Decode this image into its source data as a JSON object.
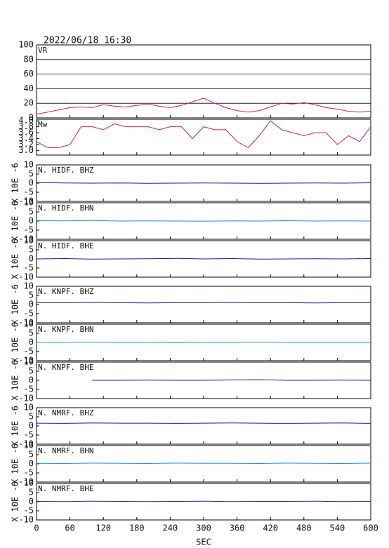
{
  "chart_data": [
    {
      "type": "line",
      "title": "2022/06/18 16:30",
      "annotation": "VR",
      "x": [
        0,
        20,
        40,
        60,
        80,
        100,
        120,
        140,
        160,
        180,
        200,
        220,
        240,
        260,
        280,
        300,
        320,
        340,
        360,
        380,
        400,
        420,
        440,
        460,
        480,
        500,
        520,
        540,
        560,
        580,
        600
      ],
      "series": [
        {
          "color": "#d0204a",
          "values": [
            5,
            8,
            11,
            14,
            15,
            14,
            18,
            16,
            15,
            17,
            19,
            16,
            14,
            17,
            22,
            27,
            20,
            14,
            10,
            8,
            10,
            15,
            20,
            19,
            21,
            18,
            14,
            12,
            9,
            8,
            9
          ]
        }
      ],
      "xlim": [
        0,
        600
      ],
      "xticks": [
        0,
        60,
        120,
        180,
        240,
        300,
        360,
        420,
        480,
        540,
        600
      ],
      "ylim": [
        0,
        100
      ],
      "yticks": [
        0,
        20,
        40,
        60,
        80,
        100
      ],
      "grid": true
    },
    {
      "type": "line",
      "annotation": "Mw",
      "x": [
        0,
        20,
        40,
        60,
        80,
        100,
        120,
        140,
        160,
        180,
        200,
        220,
        240,
        260,
        280,
        300,
        320,
        340,
        360,
        380,
        400,
        420,
        440,
        460,
        480,
        500,
        520,
        540,
        560,
        580,
        600
      ],
      "series": [
        {
          "color": "#d0204a",
          "values": [
            3.3,
            3.1,
            3.1,
            3.2,
            3.8,
            3.8,
            3.7,
            3.9,
            3.8,
            3.8,
            3.8,
            3.7,
            3.8,
            3.8,
            3.4,
            3.8,
            3.7,
            3.7,
            3.3,
            3.1,
            3.5,
            4.0,
            3.7,
            3.6,
            3.5,
            3.6,
            3.6,
            3.2,
            3.5,
            3.3,
            3.8
          ]
        }
      ],
      "xlim": [
        0,
        600
      ],
      "xticks": [
        0,
        60,
        120,
        180,
        240,
        300,
        360,
        420,
        480,
        540,
        600
      ],
      "ylim": [
        2.85,
        4.05
      ],
      "yticks": [
        {
          "value": 3,
          "label": "3.0"
        },
        3.2,
        3.4,
        3.6,
        3.8,
        {
          "value": 4,
          "label": "4.0"
        }
      ],
      "grid": false
    },
    {
      "type": "line",
      "annotation": "N. HIDF. BHZ",
      "ylabel": "X 10E -6",
      "x": [
        0,
        50,
        100,
        150,
        200,
        250,
        300,
        350,
        400,
        450,
        500,
        550,
        600
      ],
      "series": [
        {
          "color": "#1a1a9a",
          "values": [
            0.3,
            0.1,
            0,
            0.1,
            -0.1,
            0,
            0.1,
            0,
            -0.1,
            0,
            0.1,
            0,
            0.2
          ]
        }
      ],
      "xlim": [
        0,
        600
      ],
      "xticks": [
        0,
        60,
        120,
        180,
        240,
        300,
        360,
        420,
        480,
        540,
        600
      ],
      "ylim": [
        -10,
        10
      ],
      "yticks": [
        -10,
        -5,
        0,
        5,
        10
      ],
      "grid": false
    },
    {
      "type": "line",
      "annotation": "N. HIDF. BHN",
      "ylabel": "X 10E -6",
      "x": [
        0,
        50,
        100,
        150,
        200,
        250,
        300,
        350,
        400,
        450,
        500,
        550,
        600
      ],
      "series": [
        {
          "color": "#1e90d8",
          "values": [
            0.2,
            0.1,
            0.3,
            0,
            0.1,
            0,
            -0.1,
            0.1,
            0,
            0.2,
            0,
            0.1,
            0
          ]
        }
      ],
      "xlim": [
        0,
        600
      ],
      "xticks": [
        0,
        60,
        120,
        180,
        240,
        300,
        360,
        420,
        480,
        540,
        600
      ],
      "ylim": [
        -10,
        10
      ],
      "yticks": [
        -10,
        -5,
        0,
        5,
        10
      ],
      "grid": false
    },
    {
      "type": "line",
      "annotation": "N. HIDF. BHE",
      "ylabel": "X 10E -6",
      "x": [
        0,
        50,
        100,
        150,
        200,
        250,
        300,
        350,
        400,
        450,
        500,
        550,
        600
      ],
      "series": [
        {
          "color": "#1a1a9a",
          "values": [
            0,
            0.2,
            -0.1,
            0,
            0.1,
            0.3,
            0,
            0.2,
            -0.1,
            0,
            0.1,
            0,
            0.2
          ]
        }
      ],
      "xlim": [
        0,
        600
      ],
      "xticks": [
        0,
        60,
        120,
        180,
        240,
        300,
        360,
        420,
        480,
        540,
        600
      ],
      "ylim": [
        -10,
        10
      ],
      "yticks": [
        -10,
        -5,
        0,
        5,
        10
      ],
      "grid": false
    },
    {
      "type": "line",
      "annotation": "N. KNPF. BHZ",
      "ylabel": "X 10E -6",
      "x": [
        0,
        50,
        100,
        150,
        200,
        250,
        300,
        350,
        400,
        450,
        500,
        550,
        600
      ],
      "series": [
        {
          "color": "#1a1a9a",
          "values": [
            1,
            1,
            1.1,
            1,
            0.9,
            1,
            1,
            1.1,
            1,
            1,
            0.9,
            1,
            1
          ]
        }
      ],
      "xlim": [
        0,
        600
      ],
      "xticks": [
        0,
        60,
        120,
        180,
        240,
        300,
        360,
        420,
        480,
        540,
        600
      ],
      "ylim": [
        -10,
        10
      ],
      "yticks": [
        -10,
        -5,
        0,
        5,
        10
      ],
      "grid": false
    },
    {
      "type": "line",
      "annotation": "N. KNPF. BHN",
      "ylabel": "X 10E -6",
      "x": [
        0,
        50,
        100,
        150,
        200,
        250,
        300,
        350,
        400,
        450,
        500,
        550,
        600
      ],
      "series": [
        {
          "color": "#1e90d8",
          "values": [
            0,
            0,
            0.1,
            0,
            0,
            -0.1,
            0,
            0,
            0.1,
            0,
            0,
            0,
            0
          ]
        }
      ],
      "xlim": [
        0,
        600
      ],
      "xticks": [
        0,
        60,
        120,
        180,
        240,
        300,
        360,
        420,
        480,
        540,
        600
      ],
      "ylim": [
        -10,
        10
      ],
      "yticks": [
        -10,
        -5,
        0,
        5,
        10
      ],
      "grid": false
    },
    {
      "type": "line",
      "annotation": "N. KNPF. BHE",
      "ylabel": "X 10E -6",
      "x": [
        0,
        50,
        100,
        150,
        200,
        250,
        300,
        350,
        400,
        450,
        500,
        550,
        600
      ],
      "series": [
        {
          "color": "#1a1a9a",
          "values": [
            null,
            null,
            0,
            0,
            0.1,
            0,
            0,
            0.2,
            0.3,
            0,
            0,
            0.1,
            0
          ]
        }
      ],
      "xlim": [
        0,
        600
      ],
      "xticks": [
        0,
        60,
        120,
        180,
        240,
        300,
        360,
        420,
        480,
        540,
        600
      ],
      "ylim": [
        -10,
        10
      ],
      "yticks": [
        -10,
        -5,
        0,
        5,
        10
      ],
      "grid": false
    },
    {
      "type": "line",
      "annotation": "N. NMRF. BHZ",
      "ylabel": "X 10E -6",
      "x": [
        0,
        50,
        100,
        150,
        200,
        250,
        300,
        350,
        400,
        450,
        500,
        550,
        600
      ],
      "series": [
        {
          "color": "#1a1a9a",
          "values": [
            1.5,
            1.4,
            1.6,
            1.5,
            1.5,
            1.4,
            1.5,
            1.6,
            1.5,
            1.4,
            1.5,
            1.6,
            1.4
          ]
        }
      ],
      "xlim": [
        0,
        600
      ],
      "xticks": [
        0,
        60,
        120,
        180,
        240,
        300,
        360,
        420,
        480,
        540,
        600
      ],
      "ylim": [
        -10,
        10
      ],
      "yticks": [
        -10,
        -5,
        0,
        5,
        10
      ],
      "grid": false
    },
    {
      "type": "line",
      "annotation": "N. NMRF. BHN",
      "ylabel": "X 10E -6",
      "x": [
        0,
        50,
        100,
        150,
        200,
        250,
        300,
        350,
        400,
        450,
        500,
        550,
        600
      ],
      "series": [
        {
          "color": "#1e90d8",
          "values": [
            0.3,
            0.2,
            0.4,
            0.3,
            0.2,
            0.4,
            0.3,
            0.3,
            0.2,
            0.4,
            0.3,
            0.2,
            0.4
          ]
        }
      ],
      "xlim": [
        0,
        600
      ],
      "xticks": [
        0,
        60,
        120,
        180,
        240,
        300,
        360,
        420,
        480,
        540,
        600
      ],
      "ylim": [
        -10,
        10
      ],
      "yticks": [
        -10,
        -5,
        0,
        5,
        10
      ],
      "grid": false
    },
    {
      "type": "line",
      "annotation": "N. NMRF. BHE",
      "ylabel": "X 10E -6",
      "xlabel": "SEC",
      "x": [
        0,
        50,
        100,
        150,
        200,
        250,
        300,
        350,
        400,
        450,
        500,
        550,
        600
      ],
      "series": [
        {
          "color": "#1a1a9a",
          "values": [
            0.2,
            0.1,
            0.3,
            0.2,
            0.1,
            0.2,
            0.3,
            0.1,
            0.2,
            0.2,
            0.3,
            0.1,
            0.2
          ]
        }
      ],
      "xlim": [
        0,
        600
      ],
      "xticks": [
        0,
        60,
        120,
        180,
        240,
        300,
        360,
        420,
        480,
        540,
        600
      ],
      "ylim": [
        -10,
        10
      ],
      "yticks": [
        -10,
        -5,
        0,
        5,
        10
      ],
      "grid": false
    }
  ]
}
